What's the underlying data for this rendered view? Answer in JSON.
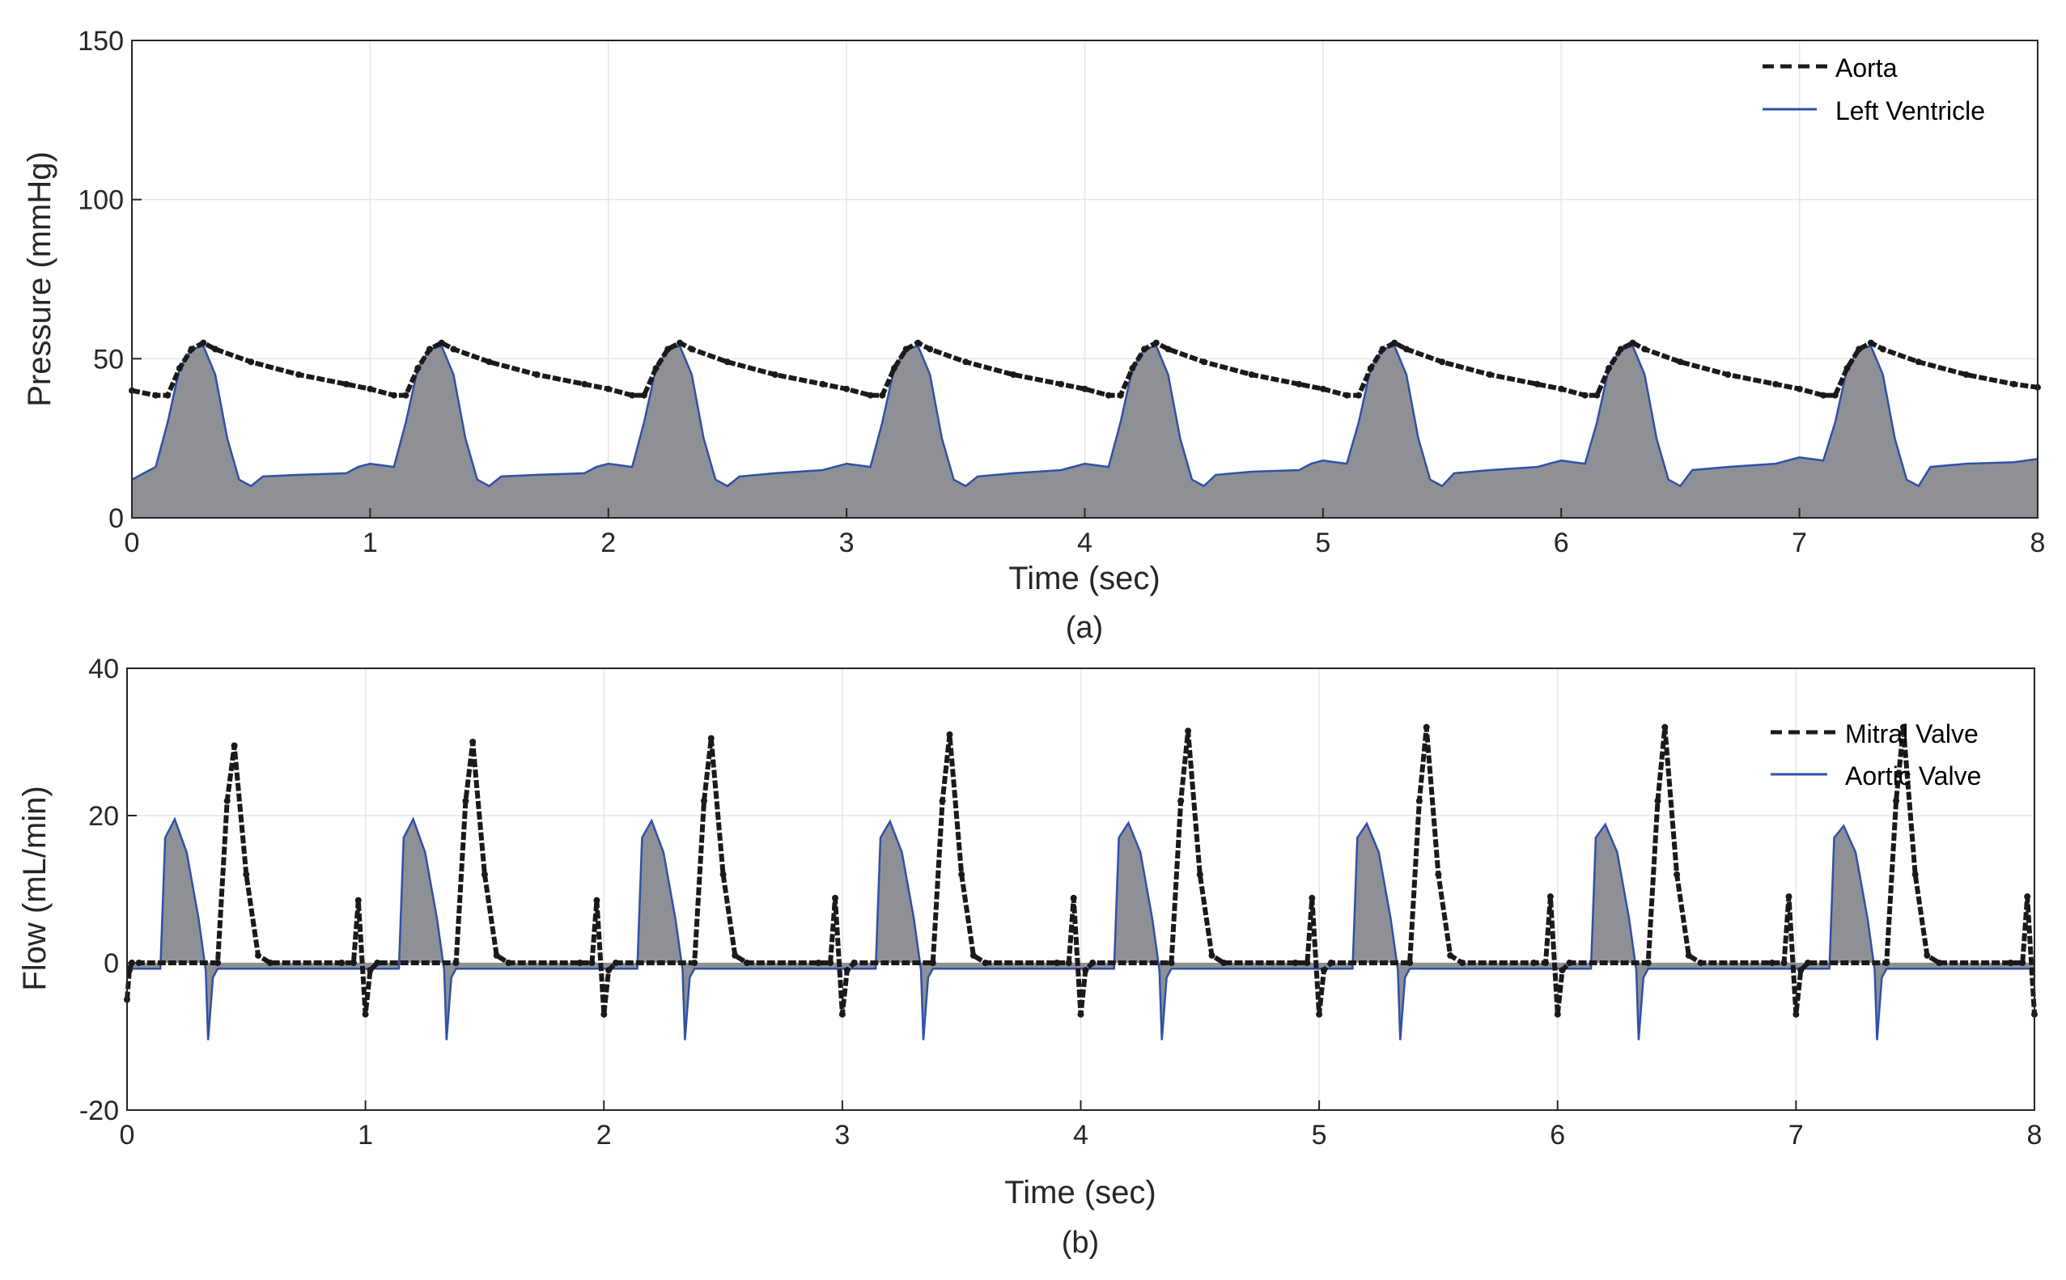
{
  "colors": {
    "aorta_line": "#1a1a1a",
    "lv_line": "#3050a8",
    "lv_fill": "#8f9095",
    "grid": "#e6e6e6",
    "axis": "#262626"
  },
  "chart_data": [
    {
      "id": "a",
      "type": "line",
      "caption": "(a)",
      "xlabel": "Time (sec)",
      "ylabel": "Pressure (mmHg)",
      "xlim": [
        0,
        8
      ],
      "ylim": [
        0,
        150
      ],
      "xticks": [
        "0",
        "1",
        "2",
        "3",
        "4",
        "5",
        "6",
        "7",
        "8"
      ],
      "yticks": [
        "0",
        "50",
        "100",
        "150"
      ],
      "grid": true,
      "legend_position": "top-right",
      "beat_period": 1.0,
      "series": [
        {
          "name": "Aorta",
          "style": "dashed-black-markers",
          "x": [
            0.0,
            0.1,
            0.15,
            0.2,
            0.25,
            0.3,
            0.35,
            0.5,
            0.7,
            0.9,
            1.0,
            1.1,
            1.15,
            1.2,
            1.25,
            1.3,
            1.35,
            1.5,
            1.7,
            1.9,
            2.0,
            2.1,
            2.15,
            2.2,
            2.25,
            2.3,
            2.35,
            2.5,
            2.7,
            2.9,
            3.0,
            3.1,
            3.15,
            3.2,
            3.25,
            3.3,
            3.35,
            3.5,
            3.7,
            3.9,
            4.0,
            4.1,
            4.15,
            4.2,
            4.25,
            4.3,
            4.35,
            4.5,
            4.7,
            4.9,
            5.0,
            5.1,
            5.15,
            5.2,
            5.25,
            5.3,
            5.35,
            5.5,
            5.7,
            5.9,
            6.0,
            6.1,
            6.15,
            6.2,
            6.25,
            6.3,
            6.35,
            6.5,
            6.7,
            6.9,
            7.0,
            7.1,
            7.15,
            7.2,
            7.25,
            7.3,
            7.35,
            7.5,
            7.7,
            7.9,
            8.0
          ],
          "y": [
            40,
            38.5,
            38.5,
            47,
            53,
            55,
            53,
            49,
            45,
            42,
            40.5,
            38.5,
            38.5,
            47,
            53,
            55,
            53,
            49,
            45,
            42,
            40.5,
            38.5,
            38.5,
            47,
            53,
            55,
            53,
            49,
            45,
            42,
            40.5,
            38.5,
            38.5,
            47,
            53,
            55,
            53,
            49,
            45,
            42,
            40.5,
            38.5,
            38.5,
            47,
            53,
            55,
            53,
            49,
            45,
            42,
            40.5,
            38.5,
            38.5,
            47,
            53,
            55,
            53,
            49,
            45,
            42,
            40.5,
            38.5,
            38.5,
            47,
            53,
            55,
            53,
            49,
            45,
            42,
            40.5,
            38.5,
            38.5,
            47,
            53,
            55,
            53,
            49,
            45,
            42,
            41
          ]
        },
        {
          "name": "Left Ventricle",
          "style": "solid-blue-filled-gray",
          "x": [
            0.0,
            0.05,
            0.1,
            0.15,
            0.2,
            0.25,
            0.3,
            0.35,
            0.4,
            0.45,
            0.5,
            0.55,
            0.7,
            0.9,
            0.95,
            1.0,
            1.05,
            1.1,
            1.15,
            1.2,
            1.25,
            1.3,
            1.35,
            1.4,
            1.45,
            1.5,
            1.55,
            1.7,
            1.9,
            1.95,
            2.0,
            2.05,
            2.1,
            2.15,
            2.2,
            2.25,
            2.3,
            2.35,
            2.4,
            2.45,
            2.5,
            2.55,
            2.7,
            2.9,
            2.95,
            3.0,
            3.05,
            3.1,
            3.15,
            3.2,
            3.25,
            3.3,
            3.35,
            3.4,
            3.45,
            3.5,
            3.55,
            3.7,
            3.9,
            3.95,
            4.0,
            4.05,
            4.1,
            4.15,
            4.2,
            4.25,
            4.3,
            4.35,
            4.4,
            4.45,
            4.5,
            4.55,
            4.7,
            4.9,
            4.95,
            5.0,
            5.05,
            5.1,
            5.15,
            5.2,
            5.25,
            5.3,
            5.35,
            5.4,
            5.45,
            5.5,
            5.55,
            5.7,
            5.9,
            5.95,
            6.0,
            6.05,
            6.1,
            6.15,
            6.2,
            6.25,
            6.3,
            6.35,
            6.4,
            6.45,
            6.5,
            6.55,
            6.7,
            6.9,
            6.95,
            7.0,
            7.05,
            7.1,
            7.15,
            7.2,
            7.25,
            7.3,
            7.35,
            7.4,
            7.45,
            7.5,
            7.55,
            7.7,
            7.9,
            7.95,
            8.0
          ],
          "y": [
            12,
            14,
            16,
            30,
            47,
            53,
            54,
            45,
            25,
            12,
            10,
            13,
            13.5,
            14,
            16,
            17,
            16.5,
            16,
            30,
            47,
            53,
            54,
            45,
            25,
            12,
            10,
            13,
            13.5,
            14,
            16,
            17,
            16.5,
            16,
            30,
            47,
            53,
            54,
            45,
            25,
            12,
            10,
            13,
            14,
            15,
            16,
            17,
            16.5,
            16,
            30,
            47,
            53,
            54,
            45,
            25,
            12,
            10,
            13,
            14,
            15,
            16,
            17,
            16.5,
            16,
            30,
            47,
            53,
            54,
            45,
            25,
            12,
            10,
            13.5,
            14.5,
            15,
            17,
            18,
            17.5,
            17,
            30,
            47,
            53,
            54,
            45,
            25,
            12,
            10,
            14,
            15,
            16,
            17,
            18,
            17.5,
            17,
            30,
            47,
            53,
            54,
            45,
            25,
            12,
            10,
            15,
            16,
            17,
            18,
            19,
            18.5,
            18,
            30,
            47,
            53,
            54,
            45,
            25,
            12,
            10,
            16,
            17,
            17.5,
            18,
            18.5
          ]
        }
      ]
    },
    {
      "id": "b",
      "type": "line",
      "caption": "(b)",
      "xlabel": "Time (sec)",
      "ylabel": "Flow (mL/min)",
      "xlim": [
        0,
        8
      ],
      "ylim": [
        -20,
        40
      ],
      "xticks": [
        "0",
        "1",
        "2",
        "3",
        "4",
        "5",
        "6",
        "7",
        "8"
      ],
      "yticks": [
        "-20",
        "0",
        "20",
        "40"
      ],
      "grid": true,
      "legend_position": "top-right",
      "beat_period": 1.0,
      "series": [
        {
          "name": "Mitral Valve",
          "style": "dashed-black-markers",
          "x": [
            0.0,
            0.01,
            0.02,
            0.05,
            0.38,
            0.42,
            0.45,
            0.5,
            0.55,
            0.6,
            0.9,
            0.95,
            0.97,
            1.0,
            1.02,
            1.05,
            1.38,
            1.42,
            1.45,
            1.5,
            1.55,
            1.6,
            1.9,
            1.95,
            1.97,
            2.0,
            2.02,
            2.05,
            2.38,
            2.42,
            2.45,
            2.5,
            2.55,
            2.6,
            2.9,
            2.95,
            2.97,
            3.0,
            3.02,
            3.05,
            3.38,
            3.42,
            3.45,
            3.5,
            3.55,
            3.6,
            3.9,
            3.95,
            3.97,
            4.0,
            4.02,
            4.05,
            4.38,
            4.42,
            4.45,
            4.5,
            4.55,
            4.6,
            4.9,
            4.95,
            4.97,
            5.0,
            5.02,
            5.05,
            5.38,
            5.42,
            5.45,
            5.5,
            5.55,
            5.6,
            5.9,
            5.95,
            5.97,
            6.0,
            6.02,
            6.05,
            6.38,
            6.42,
            6.45,
            6.5,
            6.55,
            6.6,
            6.9,
            6.95,
            6.97,
            7.0,
            7.02,
            7.05,
            7.38,
            7.42,
            7.45,
            7.5,
            7.55,
            7.6,
            7.9,
            7.95,
            7.97,
            8.0
          ],
          "y": [
            -5,
            -1,
            0,
            0,
            0,
            22,
            29.5,
            12,
            1,
            0,
            0,
            0,
            8.5,
            -7,
            -1,
            0,
            0,
            22,
            30,
            12,
            1,
            0,
            0,
            0,
            8.5,
            -7,
            -1,
            0,
            0,
            22,
            30.5,
            12,
            1,
            0,
            0,
            0,
            8.8,
            -7,
            -1,
            0,
            0,
            22,
            31,
            12,
            1,
            0,
            0,
            0,
            8.8,
            -7,
            -1,
            0,
            0,
            22,
            31.5,
            12,
            1,
            0,
            0,
            0,
            8.8,
            -7,
            -1,
            0,
            0,
            22,
            32,
            12,
            1,
            0,
            0,
            0,
            9,
            -7,
            -1,
            0,
            0,
            22,
            32,
            12,
            1,
            0,
            0,
            0,
            9,
            -7,
            -1,
            0,
            0,
            22,
            32,
            12,
            1,
            0,
            0,
            0,
            9,
            -7
          ]
        },
        {
          "name": "Aortic Valve",
          "style": "solid-blue-filled-gray",
          "x": [
            0.0,
            0.14,
            0.16,
            0.2,
            0.25,
            0.3,
            0.33,
            0.34,
            0.36,
            0.38,
            1.0,
            1.14,
            1.16,
            1.2,
            1.25,
            1.3,
            1.33,
            1.34,
            1.36,
            1.38,
            2.0,
            2.14,
            2.16,
            2.2,
            2.25,
            2.3,
            2.33,
            2.34,
            2.36,
            2.38,
            3.0,
            3.14,
            3.16,
            3.2,
            3.25,
            3.3,
            3.33,
            3.34,
            3.36,
            3.38,
            4.0,
            4.14,
            4.16,
            4.2,
            4.25,
            4.3,
            4.33,
            4.34,
            4.36,
            4.38,
            5.0,
            5.14,
            5.16,
            5.2,
            5.25,
            5.3,
            5.33,
            5.34,
            5.36,
            5.38,
            6.0,
            6.14,
            6.16,
            6.2,
            6.25,
            6.3,
            6.33,
            6.34,
            6.36,
            6.38,
            7.0,
            7.14,
            7.16,
            7.2,
            7.25,
            7.3,
            7.33,
            7.34,
            7.36,
            7.38,
            8.0
          ],
          "y": [
            -0.8,
            -0.8,
            17,
            19.5,
            15,
            6,
            -1,
            -10.5,
            -2,
            -0.8,
            -0.8,
            -0.8,
            17,
            19.5,
            15,
            6,
            -1,
            -10.5,
            -2,
            -0.8,
            -0.8,
            -0.8,
            17,
            19.3,
            15,
            6,
            -1,
            -10.5,
            -2,
            -0.8,
            -0.8,
            -0.8,
            17,
            19.2,
            15,
            6,
            -1,
            -10.5,
            -2,
            -0.8,
            -0.8,
            -0.8,
            17,
            19,
            15,
            6,
            -1,
            -10.5,
            -2,
            -0.8,
            -0.8,
            -0.8,
            17,
            18.9,
            15,
            6,
            -1,
            -10.5,
            -2,
            -0.8,
            -0.8,
            -0.8,
            17,
            18.8,
            15,
            6,
            -1,
            -10.5,
            -2,
            -0.8,
            -0.8,
            -0.8,
            17,
            18.6,
            15,
            6,
            -1,
            -10.5,
            -2,
            -0.8,
            -0.8
          ]
        }
      ]
    }
  ]
}
